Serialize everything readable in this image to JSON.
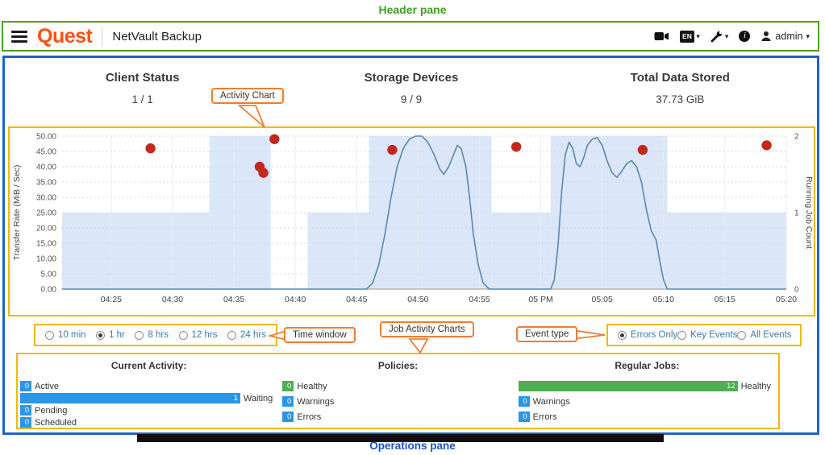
{
  "annotations": {
    "header_pane": "Header pane",
    "activity_chart": "Activity Chart",
    "time_window": "Time window",
    "job_activity_charts": "Job Activity Charts",
    "event_type": "Event type",
    "operations_pane": "Operations pane"
  },
  "colors": {
    "quest_orange": "#fb4f14",
    "annotation_orange": "#ed7d31",
    "annotation_yellow": "#f0b90b",
    "annotation_green": "#3da01e",
    "annotation_blue": "#1a53c8",
    "main_border_blue": "#1f64c8",
    "bar_blue": "#2b96e8",
    "bar_green": "#4caf50",
    "error_red": "#c4281c"
  },
  "header": {
    "brand": "Quest",
    "title": "NetVault Backup",
    "language_badge": "EN",
    "user": "admin"
  },
  "stats": [
    {
      "label": "Client Status",
      "value": "1 / 1"
    },
    {
      "label": "Storage Devices",
      "value": "9 / 9"
    },
    {
      "label": "Total Data Stored",
      "value": "37.73 GiB"
    }
  ],
  "chart_data": {
    "type": "line",
    "x_unit": "minutes after 04:20",
    "x_domain_minutes": [
      1,
      60
    ],
    "x_ticks": [
      "04:25",
      "04:30",
      "04:35",
      "04:40",
      "04:45",
      "04:50",
      "04:55",
      "05 PM",
      "05:05",
      "05:10",
      "05:15",
      "05:20"
    ],
    "x_tick_minutes": [
      5,
      10,
      15,
      20,
      25,
      30,
      35,
      40,
      45,
      50,
      55,
      60
    ],
    "left_axis": {
      "label": "Transfer Rate (MiB / Sec)",
      "min": 0,
      "max": 50,
      "ticks": [
        "50.00",
        "45.00",
        "40.00",
        "35.00",
        "30.00",
        "25.00",
        "20.00",
        "15.00",
        "10.00",
        "5.00",
        "0.00"
      ]
    },
    "right_axis": {
      "label": "Running Job Count",
      "min": 0,
      "max": 2,
      "ticks": [
        "2",
        "1",
        "0"
      ]
    },
    "running_jobs_area": {
      "color": "#dbe7f9",
      "steps": [
        [
          1,
          13,
          1
        ],
        [
          13,
          18,
          2
        ],
        [
          18,
          21,
          0
        ],
        [
          21,
          26,
          1
        ],
        [
          26,
          36,
          2
        ],
        [
          36,
          40.8,
          1
        ],
        [
          40.8,
          50.3,
          2
        ],
        [
          50.3,
          60,
          1
        ]
      ]
    },
    "transfer_rate_line": {
      "color": "#5b87b0",
      "points": [
        [
          1,
          0
        ],
        [
          25.8,
          0
        ],
        [
          26.3,
          2
        ],
        [
          26.8,
          8
        ],
        [
          27.3,
          18
        ],
        [
          27.8,
          30
        ],
        [
          28.3,
          40
        ],
        [
          28.8,
          46
        ],
        [
          29.3,
          49
        ],
        [
          29.8,
          50
        ],
        [
          30.3,
          50
        ],
        [
          30.8,
          48
        ],
        [
          31.3,
          44
        ],
        [
          31.8,
          39
        ],
        [
          32.1,
          37.5
        ],
        [
          32.5,
          40
        ],
        [
          32.9,
          44
        ],
        [
          33.2,
          47
        ],
        [
          33.5,
          46
        ],
        [
          33.9,
          40
        ],
        [
          34.2,
          30
        ],
        [
          34.5,
          18
        ],
        [
          34.9,
          8
        ],
        [
          35.3,
          2
        ],
        [
          35.8,
          0
        ],
        [
          40.8,
          0
        ],
        [
          41.1,
          3
        ],
        [
          41.4,
          14
        ],
        [
          41.7,
          32
        ],
        [
          42,
          44
        ],
        [
          42.3,
          48
        ],
        [
          42.6,
          46
        ],
        [
          42.9,
          41
        ],
        [
          43.2,
          40
        ],
        [
          43.5,
          43
        ],
        [
          43.8,
          47
        ],
        [
          44.2,
          49
        ],
        [
          44.6,
          49.5
        ],
        [
          45,
          47
        ],
        [
          45.4,
          42
        ],
        [
          45.8,
          38
        ],
        [
          46.2,
          36.5
        ],
        [
          46.6,
          38.5
        ],
        [
          47,
          41
        ],
        [
          47.4,
          42
        ],
        [
          47.8,
          40
        ],
        [
          48.2,
          35
        ],
        [
          48.6,
          26
        ],
        [
          49,
          19
        ],
        [
          49.4,
          16
        ],
        [
          49.7,
          9
        ],
        [
          50,
          3
        ],
        [
          50.3,
          0
        ],
        [
          60,
          0
        ]
      ]
    },
    "error_events": {
      "color": "#c4281c",
      "points": [
        [
          8.2,
          46
        ],
        [
          17.1,
          40
        ],
        [
          17.4,
          38
        ],
        [
          18.3,
          49
        ],
        [
          27.9,
          45.5
        ],
        [
          38,
          46.5
        ],
        [
          48.3,
          45.5
        ],
        [
          58.4,
          47
        ]
      ]
    }
  },
  "time_window": {
    "options": [
      {
        "label": "10 min",
        "selected": false
      },
      {
        "label": "1 hr",
        "selected": true
      },
      {
        "label": "8 hrs",
        "selected": false
      },
      {
        "label": "12 hrs",
        "selected": false
      },
      {
        "label": "24 hrs",
        "selected": false
      }
    ]
  },
  "event_type": {
    "options": [
      {
        "label": "Errors Only",
        "selected": true
      },
      {
        "label": "Key Events",
        "selected": false
      },
      {
        "label": "All Events",
        "selected": false
      }
    ]
  },
  "operations": {
    "sections": [
      {
        "title": "Current Activity:",
        "rows": [
          {
            "label": "Active",
            "value": 0,
            "color": "#2b96e8"
          },
          {
            "label": "Waiting",
            "value": 1,
            "color": "#2b96e8"
          },
          {
            "label": "Pending",
            "value": 0,
            "color": "#2b96e8"
          },
          {
            "label": "Scheduled",
            "value": 0,
            "color": "#2b96e8"
          }
        ]
      },
      {
        "title": "Policies:",
        "rows": [
          {
            "label": "Healthy",
            "value": 0,
            "color": "#4caf50"
          },
          {
            "label": "Warnings",
            "value": 0,
            "color": "#2b96e8"
          },
          {
            "label": "Errors",
            "value": 0,
            "color": "#2b96e8"
          }
        ]
      },
      {
        "title": "Regular Jobs:",
        "rows": [
          {
            "label": "Healthy",
            "value": 12,
            "color": "#4caf50"
          },
          {
            "label": "Warnings",
            "value": 0,
            "color": "#2b96e8"
          },
          {
            "label": "Errors",
            "value": 0,
            "color": "#2b96e8"
          }
        ]
      }
    ]
  }
}
